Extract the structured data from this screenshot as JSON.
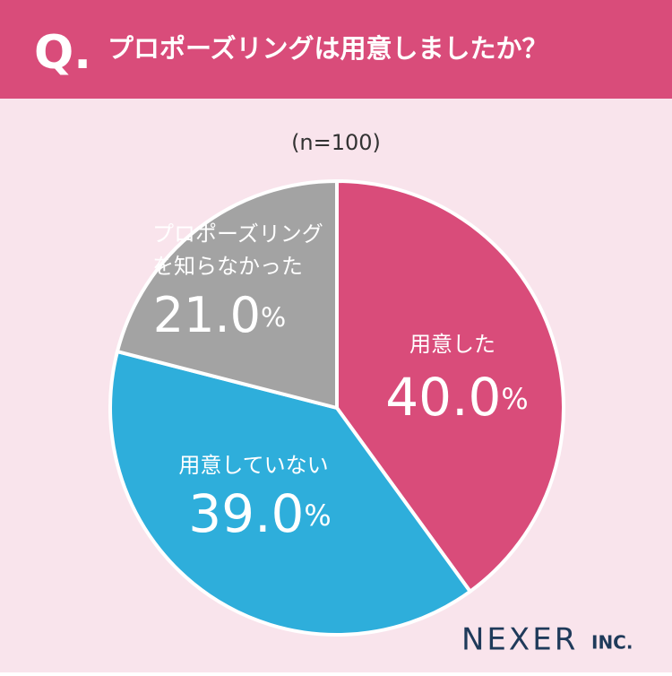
{
  "header": {
    "q": "Q."
  },
  "footer": {
    "brand": "NEXER",
    "suffix": "INC."
  },
  "chart_data": {
    "type": "pie",
    "title": "プロポーズリングは用意しましたか？",
    "subtitle": "(n=100)",
    "categories": [
      "用意した",
      "用意していない",
      "プロポーズリング\nを知らなかった"
    ],
    "values": [
      40.0,
      39.0,
      21.0
    ],
    "value_labels": [
      "40.0%",
      "39.0%",
      "21.0%"
    ],
    "colors": [
      "#d94c7a",
      "#2eaedb",
      "#a3a3a3"
    ]
  }
}
